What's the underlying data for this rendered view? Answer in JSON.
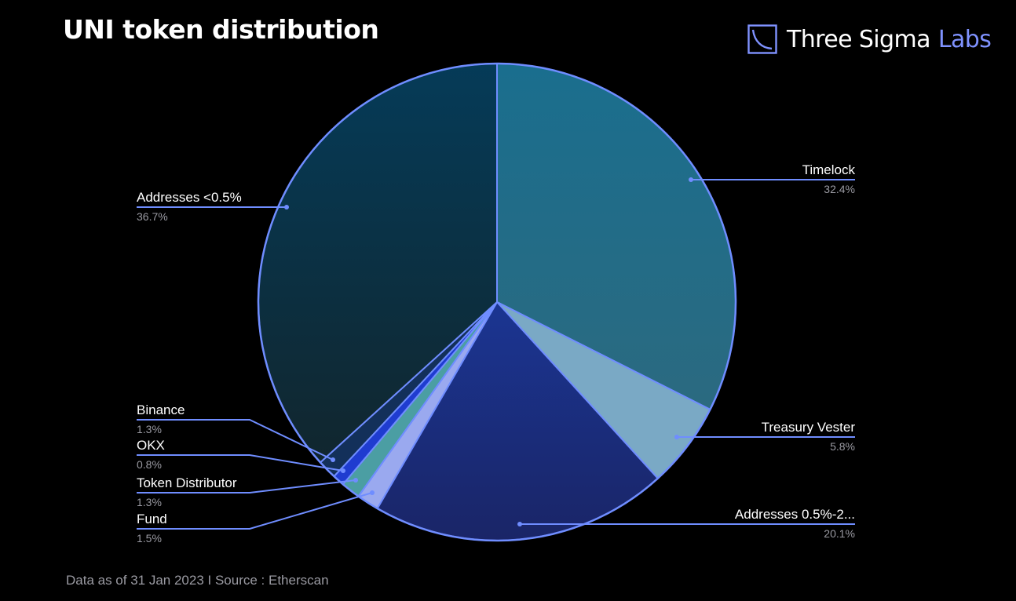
{
  "title": "UNI token distribution",
  "brand": {
    "name": "Three Sigma",
    "suffix": "Labs",
    "accent": "#7f92ff"
  },
  "footnote": "Data as of 31 Jan 2023 I Source : Etherscan",
  "chart_data": {
    "type": "pie",
    "title": "UNI token distribution",
    "slices": [
      {
        "label": "Timelock",
        "value_label": "32.4%",
        "value": 32.4,
        "color_top": "#1a6e8e",
        "color_bottom": "#2b6a80"
      },
      {
        "label": "Treasury Vester",
        "value_label": "5.8%",
        "value": 5.8,
        "color_top": "#7aa9c5",
        "color_bottom": "#7aa9c5"
      },
      {
        "label": "Addresses 0.5%-2...",
        "value_label": "20.1%",
        "value": 20.1,
        "color_top": "#1b3592",
        "color_bottom": "#1a2567"
      },
      {
        "label": "Fund",
        "value_label": "1.5%",
        "value": 1.5,
        "color_top": "#9aa9ef",
        "color_bottom": "#9aa9ef"
      },
      {
        "label": "Token Distributor",
        "value_label": "1.3%",
        "value": 1.3,
        "color_top": "#4b9ea3",
        "color_bottom": "#4b9ea3"
      },
      {
        "label": "OKX",
        "value_label": "0.8%",
        "value": 0.8,
        "color_top": "#1f3cd0",
        "color_bottom": "#1f3cd0"
      },
      {
        "label": "Binance",
        "value_label": "1.3%",
        "value": 1.3,
        "color_top": "#13305a",
        "color_bottom": "#13305a"
      },
      {
        "label": "Addresses <0.5%",
        "value_label": "36.7%",
        "value": 36.7,
        "color_top": "#053b58",
        "color_bottom": "#11262e"
      }
    ],
    "stroke_color": "#6f8dff",
    "leader_color": "#6f8dff"
  }
}
